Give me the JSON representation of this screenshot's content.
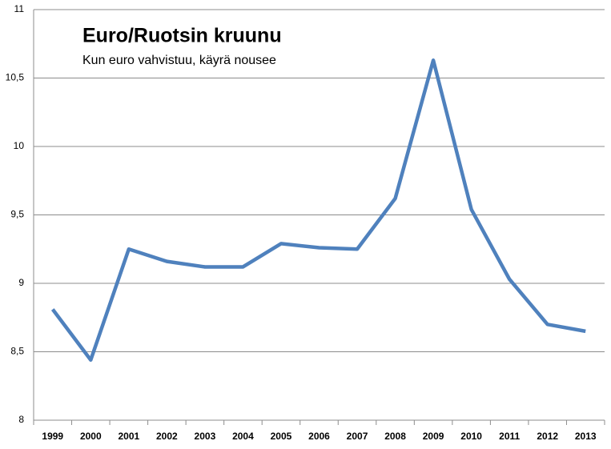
{
  "chart_data": {
    "type": "line",
    "title": "Euro/Ruotsin kruunu",
    "subtitle": "Kun euro vahvistuu, käyrä nousee",
    "categories": [
      "1999",
      "2000",
      "2001",
      "2002",
      "2003",
      "2004",
      "2005",
      "2006",
      "2007",
      "2008",
      "2009",
      "2010",
      "2011",
      "2012",
      "2013"
    ],
    "values": [
      8.81,
      8.44,
      9.25,
      9.16,
      9.12,
      9.12,
      9.29,
      9.26,
      9.25,
      9.62,
      10.63,
      9.54,
      9.03,
      8.7,
      8.65
    ],
    "color": "#4f81bd",
    "ylim": [
      8,
      11
    ],
    "yticks": [
      8,
      {
        "value": 8.5,
        "label": "8,5"
      },
      9,
      {
        "value": 9.5,
        "label": "9,5"
      },
      10,
      {
        "value": 10.5,
        "label": "10,5"
      },
      11
    ],
    "grid": true
  }
}
